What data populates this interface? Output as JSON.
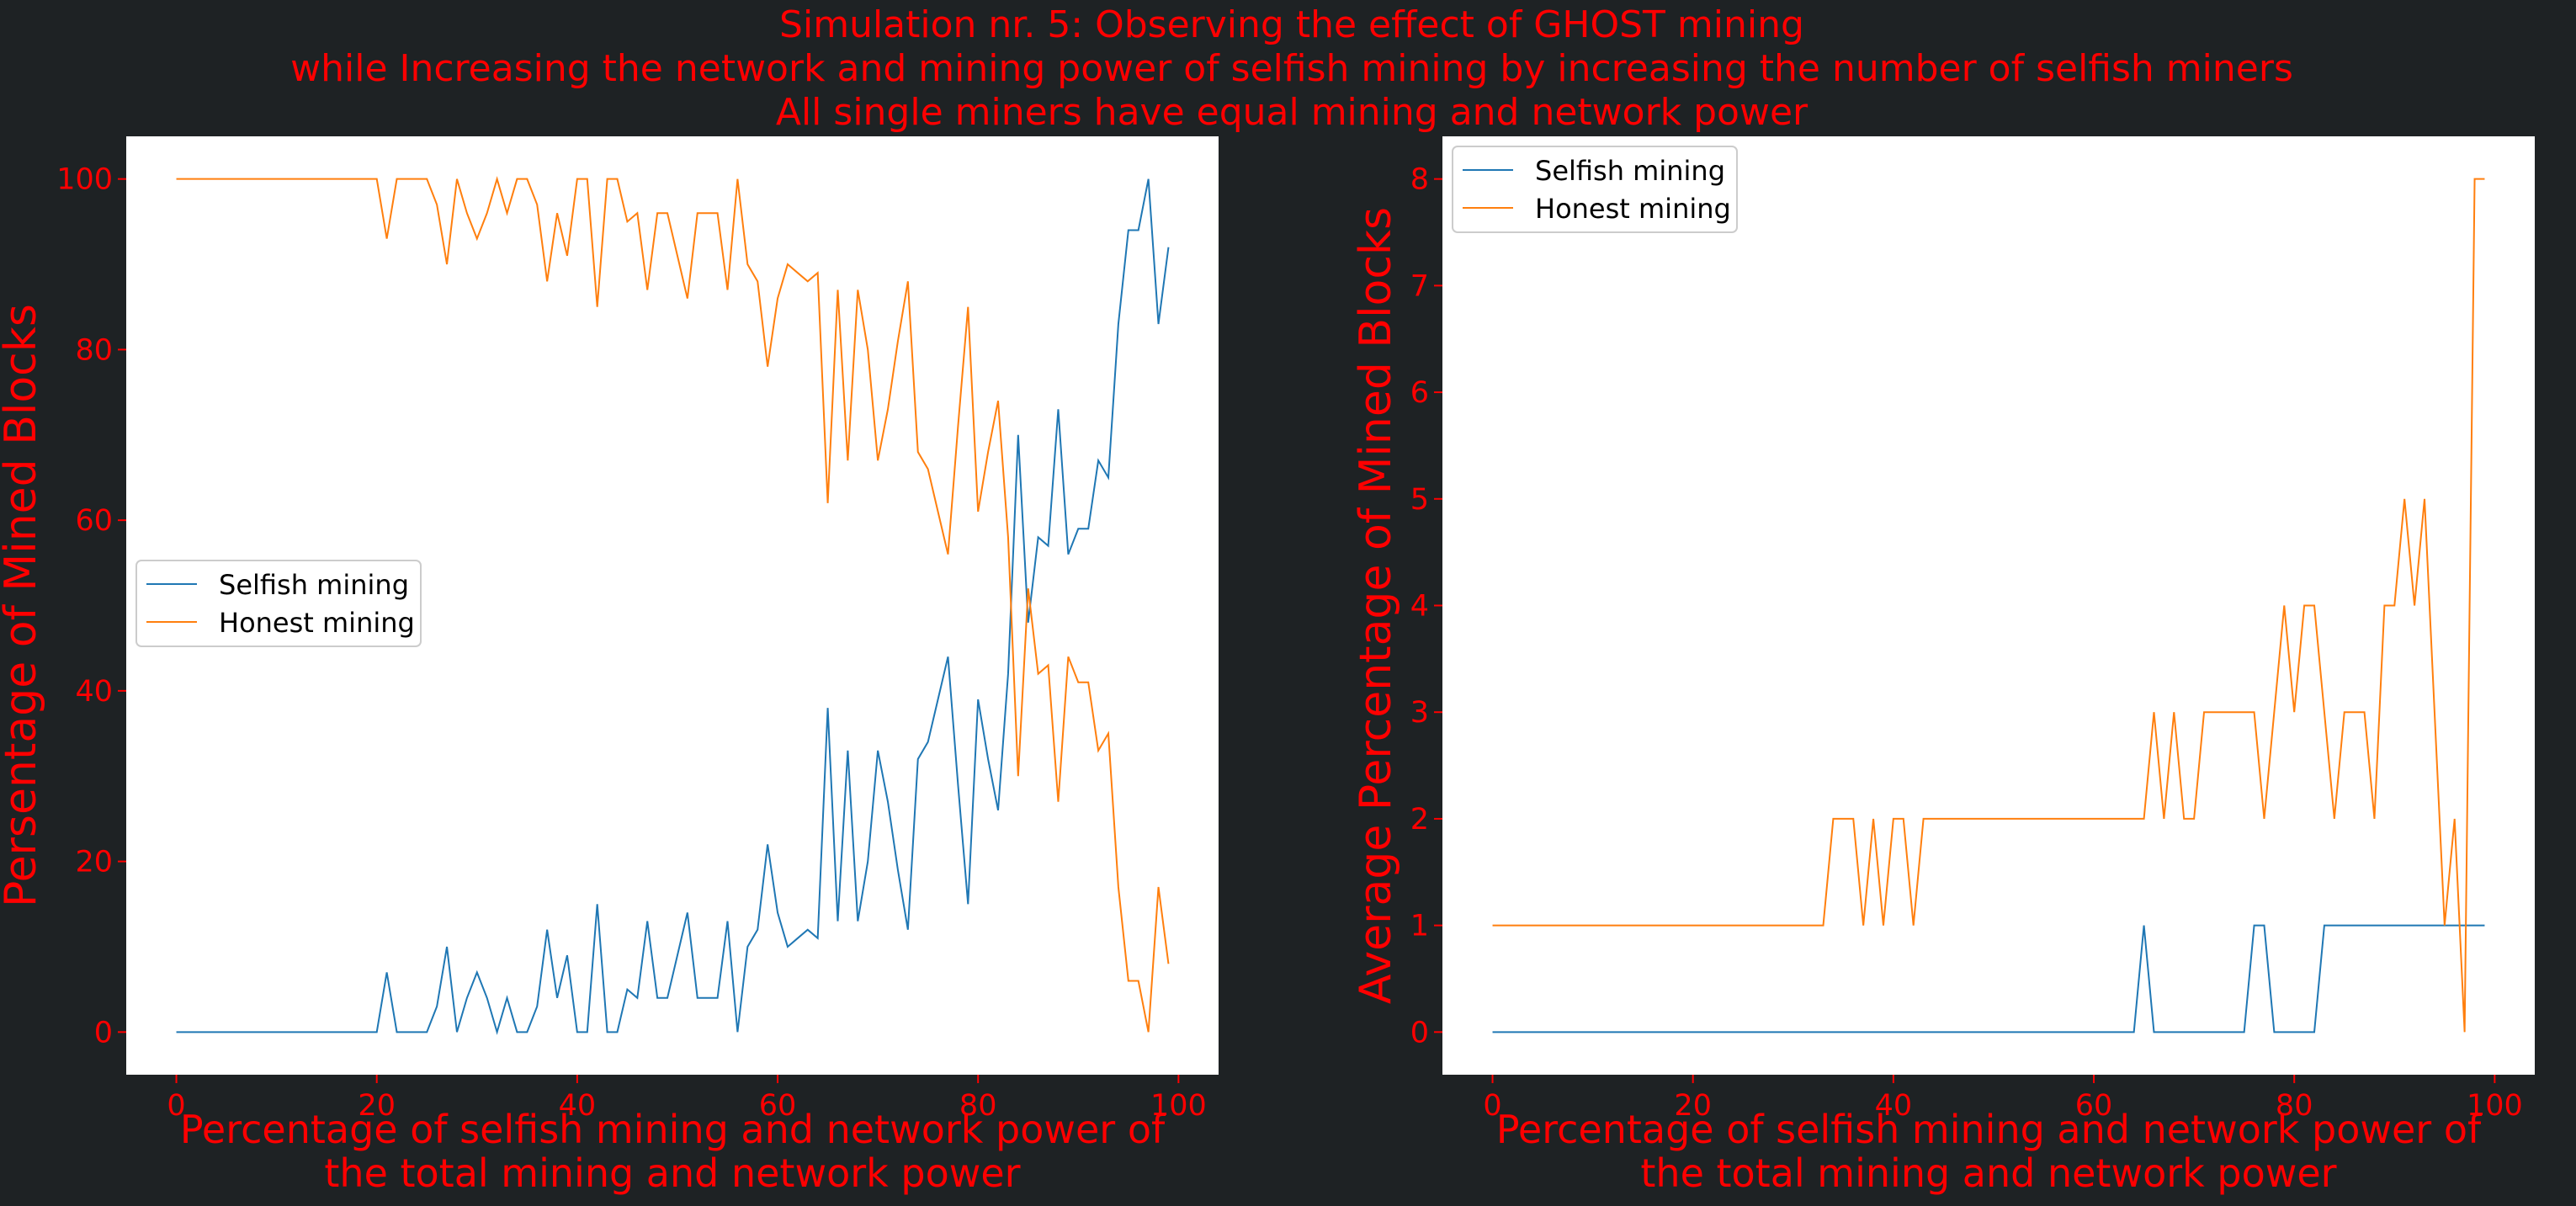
{
  "figure": {
    "title_lines": [
      "Simulation nr. 5: Observing the effect of GHOST mining",
      "while Increasing the network and mining power of selfish mining by increasing the number of selfish miners",
      "All single miners have equal mining and network power"
    ],
    "background": "#1e2224",
    "text_color": "#ff0000"
  },
  "chart_data": [
    {
      "type": "line",
      "xlabel_lines": [
        "Percentage of selfish mining and network power of",
        "the total mining and network power"
      ],
      "ylabel": "Persentage of Mined Blocks",
      "xlim": [
        -5,
        104
      ],
      "ylim": [
        -5,
        105
      ],
      "xticks": [
        0,
        20,
        40,
        60,
        80,
        100
      ],
      "yticks": [
        0,
        20,
        40,
        60,
        80,
        100
      ],
      "grid": false,
      "legend_position": "center-left",
      "x": [
        0,
        1,
        2,
        3,
        4,
        5,
        6,
        7,
        8,
        9,
        10,
        11,
        12,
        13,
        14,
        15,
        16,
        17,
        18,
        19,
        20,
        21,
        22,
        23,
        24,
        25,
        26,
        27,
        28,
        29,
        30,
        31,
        32,
        33,
        34,
        35,
        36,
        37,
        38,
        39,
        40,
        41,
        42,
        43,
        44,
        45,
        46,
        47,
        48,
        49,
        50,
        51,
        52,
        53,
        54,
        55,
        56,
        57,
        58,
        59,
        60,
        61,
        62,
        63,
        64,
        65,
        66,
        67,
        68,
        69,
        70,
        71,
        72,
        73,
        74,
        75,
        76,
        77,
        78,
        79,
        80,
        81,
        82,
        83,
        84,
        85,
        86,
        87,
        88,
        89,
        90,
        91,
        92,
        93,
        94,
        95,
        96,
        97,
        98,
        99
      ],
      "series": [
        {
          "name": "Selfish mining",
          "color": "#1f77b4",
          "values": [
            0,
            0,
            0,
            0,
            0,
            0,
            0,
            0,
            0,
            0,
            0,
            0,
            0,
            0,
            0,
            0,
            0,
            0,
            0,
            0,
            0,
            7,
            0,
            0,
            0,
            0,
            3,
            10,
            0,
            4,
            7,
            4,
            0,
            4,
            0,
            0,
            3,
            12,
            4,
            9,
            0,
            0,
            15,
            0,
            0,
            5,
            4,
            13,
            4,
            4,
            9,
            14,
            4,
            4,
            4,
            13,
            0,
            10,
            12,
            22,
            14,
            10,
            11,
            12,
            11,
            38,
            13,
            33,
            13,
            20,
            33,
            27,
            19,
            12,
            32,
            34,
            39,
            44,
            29,
            15,
            39,
            32,
            26,
            42,
            70,
            48,
            58,
            57,
            73,
            56,
            59,
            59,
            67,
            65,
            83,
            94,
            94,
            100,
            83,
            92
          ]
        },
        {
          "name": "Honest mining",
          "color": "#ff7f0e",
          "values": [
            100,
            100,
            100,
            100,
            100,
            100,
            100,
            100,
            100,
            100,
            100,
            100,
            100,
            100,
            100,
            100,
            100,
            100,
            100,
            100,
            100,
            93,
            100,
            100,
            100,
            100,
            97,
            90,
            100,
            96,
            93,
            96,
            100,
            96,
            100,
            100,
            97,
            88,
            96,
            91,
            100,
            100,
            85,
            100,
            100,
            95,
            96,
            87,
            96,
            96,
            91,
            86,
            96,
            96,
            96,
            87,
            100,
            90,
            88,
            78,
            86,
            90,
            89,
            88,
            89,
            62,
            87,
            67,
            87,
            80,
            67,
            73,
            81,
            88,
            68,
            66,
            61,
            56,
            71,
            85,
            61,
            68,
            74,
            58,
            30,
            52,
            42,
            43,
            27,
            44,
            41,
            41,
            33,
            35,
            17,
            6,
            6,
            0,
            17,
            8
          ]
        }
      ]
    },
    {
      "type": "line",
      "xlabel_lines": [
        "Percentage of selfish mining and network power of",
        "the total mining and network power"
      ],
      "ylabel": "Average Percentage of Mined Blocks",
      "xlim": [
        -5,
        104
      ],
      "ylim": [
        -0.4,
        8.4
      ],
      "xticks": [
        0,
        20,
        40,
        60,
        80,
        100
      ],
      "yticks": [
        0,
        1,
        2,
        3,
        4,
        5,
        6,
        7,
        8
      ],
      "grid": false,
      "legend_position": "upper-left",
      "x": [
        0,
        1,
        2,
        3,
        4,
        5,
        6,
        7,
        8,
        9,
        10,
        11,
        12,
        13,
        14,
        15,
        16,
        17,
        18,
        19,
        20,
        21,
        22,
        23,
        24,
        25,
        26,
        27,
        28,
        29,
        30,
        31,
        32,
        33,
        34,
        35,
        36,
        37,
        38,
        39,
        40,
        41,
        42,
        43,
        44,
        45,
        46,
        47,
        48,
        49,
        50,
        51,
        52,
        53,
        54,
        55,
        56,
        57,
        58,
        59,
        60,
        61,
        62,
        63,
        64,
        65,
        66,
        67,
        68,
        69,
        70,
        71,
        72,
        73,
        74,
        75,
        76,
        77,
        78,
        79,
        80,
        81,
        82,
        83,
        84,
        85,
        86,
        87,
        88,
        89,
        90,
        91,
        92,
        93,
        94,
        95,
        96,
        97,
        98,
        99
      ],
      "series": [
        {
          "name": "Selfish mining",
          "color": "#1f77b4",
          "values": [
            0,
            0,
            0,
            0,
            0,
            0,
            0,
            0,
            0,
            0,
            0,
            0,
            0,
            0,
            0,
            0,
            0,
            0,
            0,
            0,
            0,
            0,
            0,
            0,
            0,
            0,
            0,
            0,
            0,
            0,
            0,
            0,
            0,
            0,
            0,
            0,
            0,
            0,
            0,
            0,
            0,
            0,
            0,
            0,
            0,
            0,
            0,
            0,
            0,
            0,
            0,
            0,
            0,
            0,
            0,
            0,
            0,
            0,
            0,
            0,
            0,
            0,
            0,
            0,
            0,
            1,
            0,
            0,
            0,
            0,
            0,
            0,
            0,
            0,
            0,
            0,
            1,
            1,
            0,
            0,
            0,
            0,
            0,
            1,
            1,
            1,
            1,
            1,
            1,
            1,
            1,
            1,
            1,
            1,
            1,
            1,
            1,
            1,
            1,
            1
          ]
        },
        {
          "name": "Honest mining",
          "color": "#ff7f0e",
          "values": [
            1,
            1,
            1,
            1,
            1,
            1,
            1,
            1,
            1,
            1,
            1,
            1,
            1,
            1,
            1,
            1,
            1,
            1,
            1,
            1,
            1,
            1,
            1,
            1,
            1,
            1,
            1,
            1,
            1,
            1,
            1,
            1,
            1,
            1,
            2,
            2,
            2,
            1,
            2,
            1,
            2,
            2,
            1,
            2,
            2,
            2,
            2,
            2,
            2,
            2,
            2,
            2,
            2,
            2,
            2,
            2,
            2,
            2,
            2,
            2,
            2,
            2,
            2,
            2,
            2,
            2,
            3,
            2,
            3,
            2,
            2,
            3,
            3,
            3,
            3,
            3,
            3,
            2,
            3,
            4,
            3,
            4,
            4,
            3,
            2,
            3,
            3,
            3,
            2,
            4,
            4,
            5,
            4,
            5,
            3,
            1,
            2,
            0,
            8,
            8
          ]
        }
      ]
    }
  ]
}
